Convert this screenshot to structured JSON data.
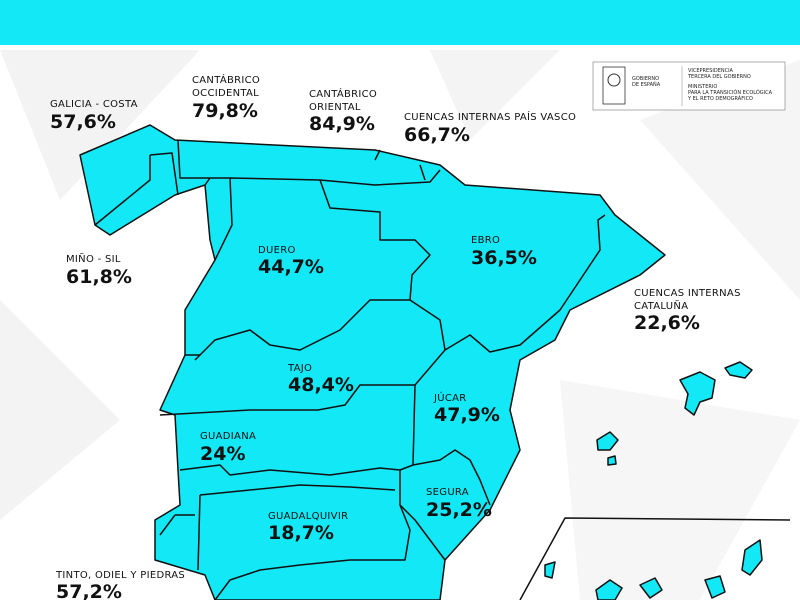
{
  "header": {
    "logo": {
      "government": [
        "GOBIERNO",
        "DE ESPAÑA"
      ],
      "vicepresidency": [
        "VICEPRESIDENCIA",
        "TERCERA DEL GOBIERNO"
      ],
      "ministry": [
        "MINISTERIO",
        "PARA LA TRANSICIÓN ECOLÓGICA",
        "Y EL RETO DEMOGRÁFICO"
      ]
    }
  },
  "basins": [
    {
      "name": [
        "GALICIA - COSTA"
      ],
      "value": "57,6%"
    },
    {
      "name": [
        "CANTÁBRICO",
        "OCCIDENTAL"
      ],
      "value": "79,8%"
    },
    {
      "name": [
        "CANTÁBRICO",
        "ORIENTAL"
      ],
      "value": "84,9%"
    },
    {
      "name": [
        "CUENCAS INTERNAS PAÍS VASCO"
      ],
      "value": "66,7%"
    },
    {
      "name": [
        "MIÑO - SIL"
      ],
      "value": "61,8%"
    },
    {
      "name": [
        "DUERO"
      ],
      "value": "44,7%"
    },
    {
      "name": [
        "EBRO"
      ],
      "value": "36,5%"
    },
    {
      "name": [
        "CUENCAS INTERNAS",
        "CATALUÑA"
      ],
      "value": "22,6%"
    },
    {
      "name": [
        "TAJO"
      ],
      "value": "48,4%"
    },
    {
      "name": [
        "JÚCAR"
      ],
      "value": "47,9%"
    },
    {
      "name": [
        "GUADIANA"
      ],
      "value": "24%"
    },
    {
      "name": [
        "SEGURA"
      ],
      "value": "25,2%"
    },
    {
      "name": [
        "GUADALQUIVIR"
      ],
      "value": "18,7%"
    },
    {
      "name": [
        "TINTO, ODIEL Y PIEDRAS"
      ],
      "value": "57,2%"
    }
  ]
}
